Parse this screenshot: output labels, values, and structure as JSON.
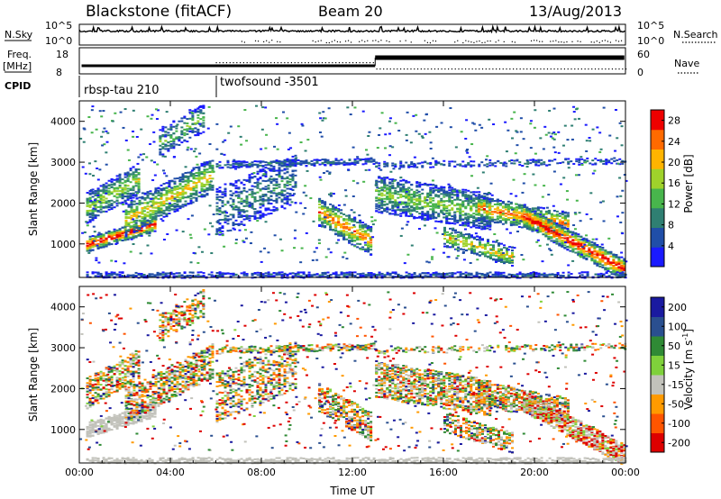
{
  "header": {
    "title": "Blackstone (fitACF)",
    "beam": "Beam 20",
    "date": "13/Aug/2013"
  },
  "strips": {
    "nsky_label": "N.Sky",
    "nsky_ticks": [
      "10^5",
      "10^0"
    ],
    "nsearch_label": "N.Search",
    "freq_label": [
      "Freq.",
      "[MHz]"
    ],
    "freq_ticks": [
      "18",
      "8"
    ],
    "nave_label": "Nave",
    "nave_ticks": [
      "60",
      "0"
    ],
    "cpid_label": "CPID",
    "cpid_entries": [
      {
        "name": "rbsp-tau 210",
        "start_hour": 0
      },
      {
        "name": "twofsound -3501",
        "start_hour": 6
      }
    ]
  },
  "chart_data": [
    {
      "type": "heatmap",
      "title": "",
      "xlabel": "",
      "ylabel": "Slant Range [km]",
      "x_ticks": [
        "00:00",
        "04:00",
        "08:00",
        "12:00",
        "16:00",
        "20:00",
        "00:00"
      ],
      "xlim_hours": [
        0,
        24
      ],
      "ylim_km": [
        180,
        4500
      ],
      "y_ticks": [
        1000,
        2000,
        3000,
        4000
      ],
      "colorbar": {
        "label": "Power [dB]",
        "ticks": [
          4,
          8,
          12,
          16,
          20,
          24,
          28
        ],
        "range": [
          0,
          30
        ],
        "colors": [
          "#1a1aff",
          "#204ea8",
          "#2f7f72",
          "#48b54c",
          "#9fd22b",
          "#ffb400",
          "#ff6a00",
          "#ee0000"
        ]
      },
      "features": [
        {
          "name": "dayside band",
          "start": [
            0.4,
            1100
          ],
          "end": [
            5.9,
            2550
          ],
          "power_db": 24
        },
        {
          "name": "3000 km echoes",
          "start": [
            6.0,
            3000
          ],
          "end": [
            13.0,
            3000
          ],
          "power_db": 8
        },
        {
          "name": "post-13UT band",
          "start": [
            13.0,
            2300
          ],
          "end": [
            18.5,
            1800
          ],
          "power_db": 14
        },
        {
          "name": "evening band",
          "start": [
            19.0,
            1700
          ],
          "end": [
            23.9,
            500
          ],
          "power_db": 26
        }
      ]
    },
    {
      "type": "heatmap",
      "title": "",
      "xlabel": "Time UT",
      "ylabel": "Slant Range [km]",
      "x_ticks": [
        "00:00",
        "04:00",
        "08:00",
        "12:00",
        "16:00",
        "20:00",
        "00:00"
      ],
      "xlim_hours": [
        0,
        24
      ],
      "ylim_km": [
        180,
        4500
      ],
      "y_ticks": [
        1000,
        2000,
        3000,
        4000
      ],
      "colorbar": {
        "label": "Velocity [m s",
        "label_exp": "-1",
        "ticks": [
          200,
          100,
          50,
          15,
          -15,
          -50,
          -100,
          -200
        ],
        "colors": [
          "#1a1aa0",
          "#2a4f8f",
          "#2f8a35",
          "#7fd13b",
          "#c2c2bb",
          "#ff9a00",
          "#ff5500",
          "#dd0000"
        ]
      },
      "features": [
        {
          "name": "ground scatter",
          "start": [
            0.4,
            1150
          ],
          "end": [
            3.5,
            1350
          ],
          "velocity": 0
        },
        {
          "name": "upper band",
          "start": [
            0.5,
            2300
          ],
          "end": [
            5.9,
            2500
          ],
          "velocity": 20
        }
      ]
    }
  ]
}
